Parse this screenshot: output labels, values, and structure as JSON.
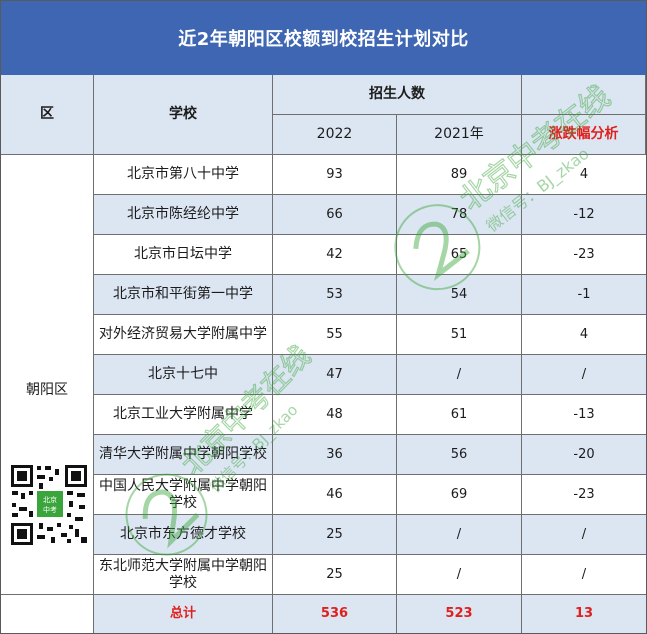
{
  "title": "近2年朝阳区校额到校招生计划对比",
  "headers": {
    "district": "区",
    "school": "学校",
    "plan": "招生人数",
    "y2022": "2022",
    "y2021": "2021年",
    "change": "涨跌幅分析"
  },
  "district_name": "朝阳区",
  "rows": [
    {
      "school": "北京市第八十中学",
      "y2022": "93",
      "y2021": "89",
      "change": "4"
    },
    {
      "school": "北京市陈经纶中学",
      "y2022": "66",
      "y2021": "78",
      "change": "-12"
    },
    {
      "school": "北京市日坛中学",
      "y2022": "42",
      "y2021": "65",
      "change": "-23"
    },
    {
      "school": "北京市和平街第一中学",
      "y2022": "53",
      "y2021": "54",
      "change": "-1"
    },
    {
      "school": "对外经济贸易大学附属中学",
      "y2022": "55",
      "y2021": "51",
      "change": "4"
    },
    {
      "school": "北京十七中",
      "y2022": "47",
      "y2021": "/",
      "change": "/"
    },
    {
      "school": "北京工业大学附属中学",
      "y2022": "48",
      "y2021": "61",
      "change": "-13"
    },
    {
      "school": "清华大学附属中学朝阳学校",
      "y2022": "36",
      "y2021": "56",
      "change": "-20"
    },
    {
      "school": "中国人民大学附属中学朝阳学校",
      "y2022": "46",
      "y2021": "69",
      "change": "-23"
    },
    {
      "school": "北京市东方德才学校",
      "y2022": "25",
      "y2021": "/",
      "change": "/"
    },
    {
      "school": "东北师范大学附属中学朝阳学校",
      "y2022": "25",
      "y2021": "/",
      "change": "/"
    }
  ],
  "total": {
    "label": "总计",
    "y2022": "536",
    "y2021": "523",
    "change": "13"
  },
  "watermark": {
    "text1": "北京中考在线",
    "text2": "微信号：BJ_zkao"
  },
  "qr_badge": {
    "line1": "北京",
    "line2": "中考"
  },
  "colors": {
    "title_bg": "#3e66b2",
    "header_bg": "#dce6f2",
    "accent_red": "#e0201d",
    "watermark": "#3aa53a"
  }
}
